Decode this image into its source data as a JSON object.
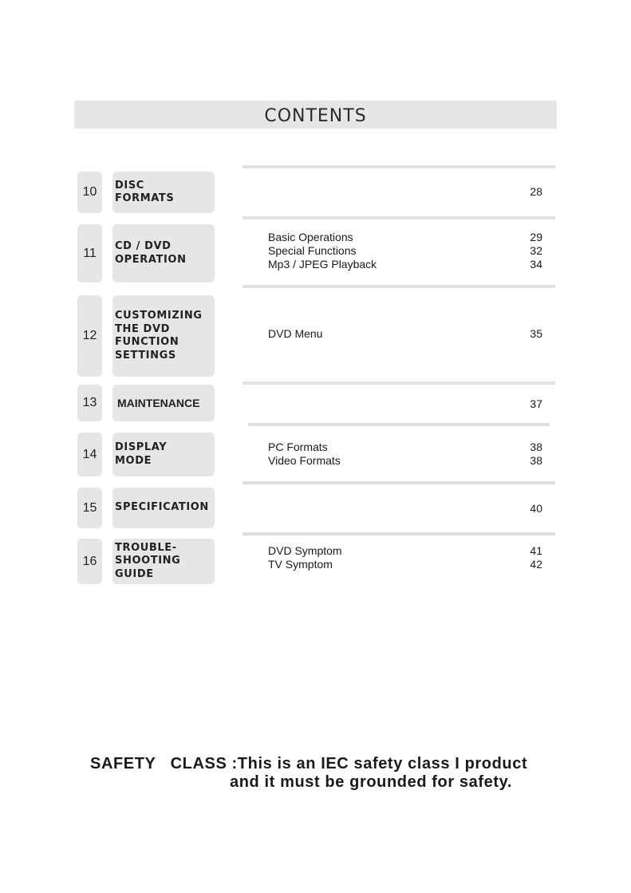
{
  "header": {
    "title": "CONTENTS"
  },
  "sections": [
    {
      "number": "10",
      "title": "DISC\nFORMATS",
      "items": [
        {
          "label": "",
          "page": "28"
        }
      ]
    },
    {
      "number": "11",
      "title": "CD / DVD\nOPERATION",
      "items": [
        {
          "label": "Basic Operations",
          "page": "29"
        },
        {
          "label": "Special Functions",
          "page": "32"
        },
        {
          "label": "Mp3 / JPEG Playback",
          "page": "34"
        }
      ]
    },
    {
      "number": "12",
      "title": "CUSTOMIZING\nTHE DVD\nFUNCTION\nSETTINGS",
      "items": [
        {
          "label": "DVD  Menu",
          "page": "35"
        }
      ]
    },
    {
      "number": "13",
      "title": "MAINTENANCE",
      "items": [
        {
          "label": "",
          "page": "37"
        }
      ]
    },
    {
      "number": "14",
      "title": "DISPLAY\nMODE",
      "items": [
        {
          "label": "PC Formats",
          "page": "38"
        },
        {
          "label": "Video Formats",
          "page": "38"
        }
      ]
    },
    {
      "number": "15",
      "title": "SPECIFICATION",
      "items": [
        {
          "label": "",
          "page": "40"
        }
      ]
    },
    {
      "number": "16",
      "title": "TROUBLE-\nSHOOTING\nGUIDE",
      "items": [
        {
          "label": "DVD Symptom",
          "page": "41"
        },
        {
          "label": "TV Symptom",
          "page": "42"
        }
      ]
    }
  ],
  "footer": {
    "line1": "SAFETY   CLASS :This is an IEC safety class I product",
    "line2": "and it must be grounded for safety."
  }
}
